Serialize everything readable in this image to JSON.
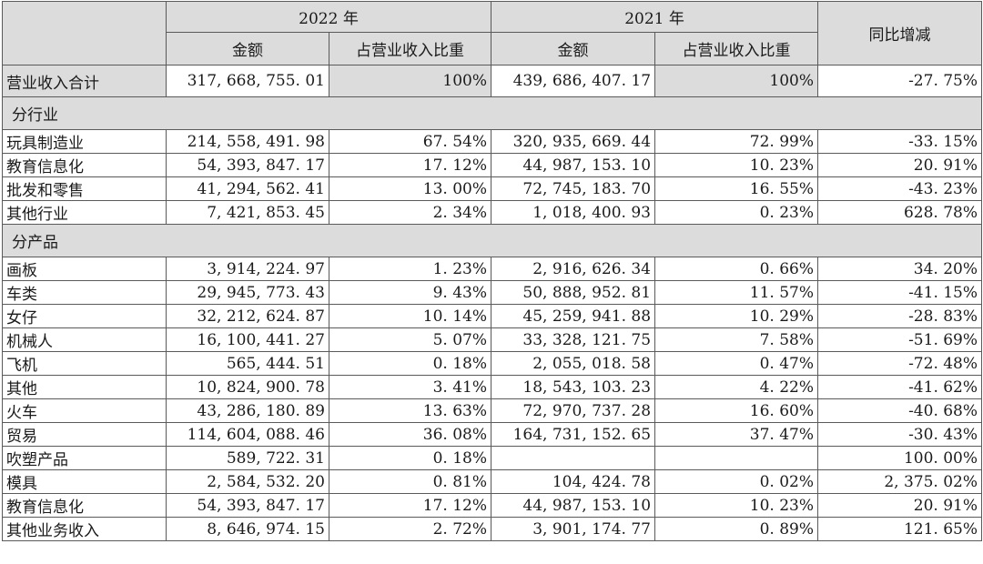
{
  "header": {
    "year_2022": "2022 年",
    "year_2021": "2021 年",
    "amount": "金额",
    "share": "占营业收入比重",
    "yoy": "同比增减"
  },
  "total": {
    "label": "营业收入合计",
    "amt2022": "317, 668, 755. 01",
    "pct2022": "100%",
    "amt2021": "439, 686, 407. 17",
    "pct2021": "100%",
    "yoy": "-27. 75%"
  },
  "by_industry": {
    "title": "分行业",
    "rows": [
      {
        "label": "玩具制造业",
        "amt2022": "214, 558, 491. 98",
        "pct2022": "67. 54%",
        "amt2021": "320, 935, 669. 44",
        "pct2021": "72. 99%",
        "yoy": "-33. 15%"
      },
      {
        "label": "教育信息化",
        "amt2022": "54, 393, 847. 17",
        "pct2022": "17. 12%",
        "amt2021": "44, 987, 153. 10",
        "pct2021": "10. 23%",
        "yoy": "20. 91%"
      },
      {
        "label": "批发和零售",
        "amt2022": "41, 294, 562. 41",
        "pct2022": "13. 00%",
        "amt2021": "72, 745, 183. 70",
        "pct2021": "16. 55%",
        "yoy": "-43. 23%"
      },
      {
        "label": "其他行业",
        "amt2022": "7, 421, 853. 45",
        "pct2022": "2. 34%",
        "amt2021": "1, 018, 400. 93",
        "pct2021": "0. 23%",
        "yoy": "628. 78%"
      }
    ]
  },
  "by_product": {
    "title": "分产品",
    "rows": [
      {
        "label": "画板",
        "amt2022": "3, 914, 224. 97",
        "pct2022": "1. 23%",
        "amt2021": "2, 916, 626. 34",
        "pct2021": "0. 66%",
        "yoy": "34. 20%"
      },
      {
        "label": "车类",
        "amt2022": "29, 945, 773. 43",
        "pct2022": "9. 43%",
        "amt2021": "50, 888, 952. 81",
        "pct2021": "11. 57%",
        "yoy": "-41. 15%"
      },
      {
        "label": "女仔",
        "amt2022": "32, 212, 624. 87",
        "pct2022": "10. 14%",
        "amt2021": "45, 259, 941. 88",
        "pct2021": "10. 29%",
        "yoy": "-28. 83%"
      },
      {
        "label": "机械人",
        "amt2022": "16, 100, 441. 27",
        "pct2022": "5. 07%",
        "amt2021": "33, 328, 121. 75",
        "pct2021": "7. 58%",
        "yoy": "-51. 69%"
      },
      {
        "label": "飞机",
        "amt2022": "565, 444. 51",
        "pct2022": "0. 18%",
        "amt2021": "2, 055, 018. 58",
        "pct2021": "0. 47%",
        "yoy": "-72. 48%"
      },
      {
        "label": "其他",
        "amt2022": "10, 824, 900. 78",
        "pct2022": "3. 41%",
        "amt2021": "18, 543, 103. 23",
        "pct2021": "4. 22%",
        "yoy": "-41. 62%"
      },
      {
        "label": "火车",
        "amt2022": "43, 286, 180. 89",
        "pct2022": "13. 63%",
        "amt2021": "72, 970, 737. 28",
        "pct2021": "16. 60%",
        "yoy": "-40. 68%"
      },
      {
        "label": "贸易",
        "amt2022": "114, 604, 088. 46",
        "pct2022": "36. 08%",
        "amt2021": "164, 731, 152. 65",
        "pct2021": "37. 47%",
        "yoy": "-30. 43%"
      },
      {
        "label": "吹塑产品",
        "amt2022": "589, 722. 31",
        "pct2022": "0. 18%",
        "amt2021": "",
        "pct2021": "",
        "yoy": "100. 00%"
      },
      {
        "label": "模具",
        "amt2022": "2, 584, 532. 20",
        "pct2022": "0. 81%",
        "amt2021": "104, 424. 78",
        "pct2021": "0. 02%",
        "yoy": "2, 375. 02%"
      },
      {
        "label": "教育信息化",
        "amt2022": "54, 393, 847. 17",
        "pct2022": "17. 12%",
        "amt2021": "44, 987, 153. 10",
        "pct2021": "10. 23%",
        "yoy": "20. 91%"
      },
      {
        "label": "其他业务收入",
        "amt2022": "8, 646, 974. 15",
        "pct2022": "2. 72%",
        "amt2021": "3, 901, 174. 77",
        "pct2021": "0. 89%",
        "yoy": "121. 65%"
      }
    ]
  }
}
